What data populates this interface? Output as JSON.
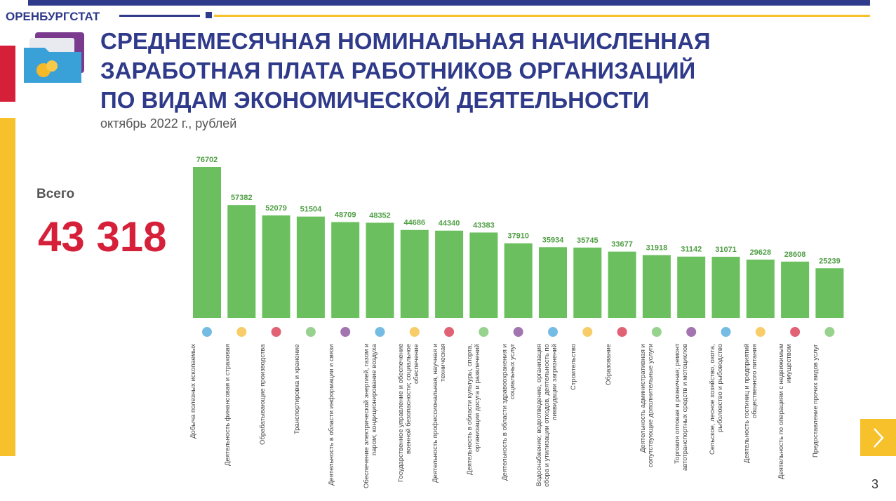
{
  "header": {
    "brand": "ОРЕНБУРГСТАТ",
    "page_number": "3"
  },
  "total": {
    "label": "Всего",
    "value": "43 318"
  },
  "chart_data": {
    "type": "bar",
    "title_lines": [
      "СРЕДНЕМЕСЯЧНАЯ НОМИНАЛЬНАЯ НАЧИСЛЕННАЯ",
      "ЗАРАБОТНАЯ ПЛАТА РАБОТНИКОВ ОРГАНИЗАЦИЙ",
      "ПО ВИДАМ ЭКОНОМИЧЕСКОЙ ДЕЯТЕЛЬНОСТИ"
    ],
    "subtitle": "октябрь 2022 г., рублей",
    "color": "#6cbf5f",
    "categories": [
      "Добыча полезных ископаемых",
      "Деятельность финансовая и страховая",
      "Обрабатывающие производства",
      "Транспортировка и хранение",
      "Деятельность в области информации и связи",
      "Обеспечение электрической энергией, газом и паром; кондиционирование воздуха",
      "Государственное управление и обеспечение военной безопасности; социальное обеспечение",
      "Деятельность профессиональная, научная и техническая",
      "Деятельность в области культуры, спорта, организации досуга и развлечений",
      "Деятельность в области здравоохранения и социальных услуг",
      "Водоснабжение; водоотведение, организация сбора и утилизации отходов, деятельность по ликвидации загрязнений",
      "Строительство",
      "Образование",
      "Деятельность административная и сопутствующие дополнительные услуги",
      "Торговля оптовая и розничная; ремонт автотранспортных средств и мотоциклов",
      "Сельское, лесное хозяйство, охота, рыболовство и рыбоводство",
      "Деятельность гостиниц и предприятий общественного питания",
      "Деятельность по операциям с недвижимым имуществом",
      "Предоставление прочих видов услуг"
    ],
    "values": [
      76702,
      57382,
      52079,
      51504,
      48709,
      48352,
      44686,
      44340,
      43383,
      37910,
      35934,
      35745,
      33677,
      31918,
      31142,
      31071,
      29628,
      28608,
      25239
    ]
  }
}
